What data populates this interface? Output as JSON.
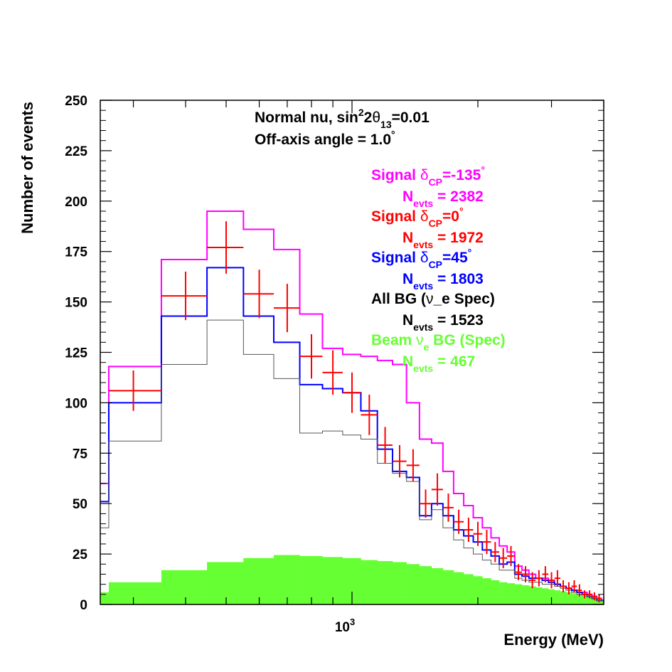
{
  "chart_data": {
    "type": "histogram",
    "title_lines": [
      {
        "text": "Normal nu, sin",
        "sup": "2",
        "text2": "2",
        "greek": "θ",
        "sub": "13",
        "text3": "=0.01"
      },
      {
        "text": "Off-axis angle = 1.0",
        "sup": "°"
      }
    ],
    "xlabel": "Energy (MeV)",
    "ylabel": "Number of events",
    "xscale": "log",
    "xlim": [
      250,
      4000
    ],
    "ylim": [
      0,
      250
    ],
    "yticks": [
      0,
      25,
      50,
      75,
      100,
      125,
      150,
      175,
      200,
      225,
      250
    ],
    "yticklabels": [
      "0",
      "25",
      "50",
      "75",
      "100",
      "125",
      "150",
      "175",
      "200",
      "225",
      "250"
    ],
    "xtick_label": {
      "base": "10",
      "exp": "3",
      "value": 1000
    },
    "bin_edges": [
      250,
      262,
      350,
      450,
      550,
      650,
      750,
      850,
      950,
      1050,
      1150,
      1250,
      1350,
      1450,
      1550,
      1650,
      1750,
      1850,
      1950,
      2050,
      2150,
      2250,
      2350,
      2450,
      2550,
      2650,
      2750,
      2850,
      2950,
      3050,
      3150,
      3250,
      3350,
      3450,
      3550,
      3650,
      3750,
      3850,
      3950,
      4000
    ],
    "series": [
      {
        "name": "Signal δCP=-135°",
        "color": "#ff00ff",
        "style": "step",
        "values": [
          60,
          118,
          171,
          195,
          186,
          176,
          144,
          127,
          124,
          123,
          121,
          119,
          100,
          82,
          80,
          66,
          55,
          49,
          43,
          38,
          33,
          29,
          26,
          19,
          17,
          15,
          13,
          13,
          12,
          10,
          9,
          8,
          7,
          6,
          6,
          5,
          4,
          3,
          2
        ]
      },
      {
        "name": "Signal δCP=45°",
        "color": "#0000ff",
        "style": "step",
        "values": [
          51,
          100,
          143,
          167,
          143,
          130,
          109,
          107,
          105,
          96,
          77,
          66,
          63,
          44,
          50,
          44,
          37,
          34,
          31,
          27,
          24,
          20,
          21,
          15,
          14,
          13,
          13,
          12,
          11,
          10,
          9,
          8,
          7,
          6,
          5,
          4,
          3,
          2,
          2
        ]
      },
      {
        "name": "All BG (ν_e Spec)",
        "color": "#555555",
        "style": "step",
        "values": [
          38,
          81,
          119,
          141,
          124,
          112,
          85,
          86,
          84,
          82,
          70,
          65,
          61,
          42,
          47,
          38,
          32,
          28,
          25,
          22,
          20,
          17,
          17,
          13,
          12,
          11,
          11,
          10,
          10,
          9,
          8,
          7,
          6,
          5,
          5,
          4,
          3,
          2,
          2
        ]
      },
      {
        "name": "Beam νe BG (Spec)",
        "color": "#66ff33",
        "style": "fill",
        "values": [
          6,
          11,
          17,
          21,
          23,
          24.5,
          24,
          23.5,
          23,
          22,
          21.5,
          21,
          20,
          19,
          18,
          17,
          16,
          15,
          14,
          13,
          12,
          11,
          10.5,
          10,
          9.5,
          9,
          8.5,
          8,
          7.5,
          7,
          6.5,
          6,
          5.5,
          5,
          4.5,
          4,
          3.5,
          3,
          2.5
        ]
      }
    ],
    "data_points": {
      "name": "Signal δCP=0°",
      "color": "#ff0000",
      "points": [
        {
          "x": 300,
          "y": 106,
          "err": 10,
          "xlo": 262,
          "xhi": 350
        },
        {
          "x": 400,
          "y": 153,
          "err": 12,
          "xlo": 350,
          "xhi": 450
        },
        {
          "x": 500,
          "y": 177,
          "err": 13,
          "xlo": 450,
          "xhi": 550
        },
        {
          "x": 600,
          "y": 154,
          "err": 12,
          "xlo": 550,
          "xhi": 650
        },
        {
          "x": 700,
          "y": 147,
          "err": 12,
          "xlo": 650,
          "xhi": 750
        },
        {
          "x": 800,
          "y": 123,
          "err": 11,
          "xlo": 750,
          "xhi": 850
        },
        {
          "x": 900,
          "y": 115,
          "err": 11,
          "xlo": 850,
          "xhi": 950
        },
        {
          "x": 1000,
          "y": 105,
          "err": 10,
          "xlo": 950,
          "xhi": 1050
        },
        {
          "x": 1100,
          "y": 94,
          "err": 10,
          "xlo": 1050,
          "xhi": 1150
        },
        {
          "x": 1200,
          "y": 79,
          "err": 9,
          "xlo": 1150,
          "xhi": 1250
        },
        {
          "x": 1300,
          "y": 71,
          "err": 8,
          "xlo": 1250,
          "xhi": 1350
        },
        {
          "x": 1400,
          "y": 69,
          "err": 8,
          "xlo": 1350,
          "xhi": 1450
        },
        {
          "x": 1500,
          "y": 50,
          "err": 7,
          "xlo": 1450,
          "xhi": 1550
        },
        {
          "x": 1600,
          "y": 57,
          "err": 8,
          "xlo": 1550,
          "xhi": 1650
        },
        {
          "x": 1700,
          "y": 48,
          "err": 7,
          "xlo": 1650,
          "xhi": 1750
        },
        {
          "x": 1800,
          "y": 41,
          "err": 6,
          "xlo": 1750,
          "xhi": 1850
        },
        {
          "x": 1900,
          "y": 37,
          "err": 6,
          "xlo": 1850,
          "xhi": 1950
        },
        {
          "x": 2000,
          "y": 35,
          "err": 6,
          "xlo": 1950,
          "xhi": 2050
        },
        {
          "x": 2100,
          "y": 31,
          "err": 6,
          "xlo": 2050,
          "xhi": 2150
        },
        {
          "x": 2200,
          "y": 26,
          "err": 5,
          "xlo": 2150,
          "xhi": 2250
        },
        {
          "x": 2300,
          "y": 23,
          "err": 5,
          "xlo": 2250,
          "xhi": 2350
        },
        {
          "x": 2400,
          "y": 24,
          "err": 5,
          "xlo": 2350,
          "xhi": 2450
        },
        {
          "x": 2500,
          "y": 16,
          "err": 4,
          "xlo": 2450,
          "xhi": 2550
        },
        {
          "x": 2600,
          "y": 15,
          "err": 4,
          "xlo": 2550,
          "xhi": 2650
        },
        {
          "x": 2700,
          "y": 12,
          "err": 4,
          "xlo": 2650,
          "xhi": 2750
        },
        {
          "x": 2800,
          "y": 13,
          "err": 4,
          "xlo": 2750,
          "xhi": 2850
        },
        {
          "x": 2900,
          "y": 15,
          "err": 4,
          "xlo": 2850,
          "xhi": 2950
        },
        {
          "x": 3000,
          "y": 12,
          "err": 4,
          "xlo": 2950,
          "xhi": 3050
        },
        {
          "x": 3100,
          "y": 13,
          "err": 4,
          "xlo": 3050,
          "xhi": 3150
        },
        {
          "x": 3200,
          "y": 9,
          "err": 3,
          "xlo": 3150,
          "xhi": 3250
        },
        {
          "x": 3300,
          "y": 8,
          "err": 3,
          "xlo": 3250,
          "xhi": 3350
        },
        {
          "x": 3400,
          "y": 9,
          "err": 3,
          "xlo": 3350,
          "xhi": 3450
        },
        {
          "x": 3500,
          "y": 7,
          "err": 3,
          "xlo": 3450,
          "xhi": 3550
        },
        {
          "x": 3600,
          "y": 5,
          "err": 2,
          "xlo": 3550,
          "xhi": 3650
        },
        {
          "x": 3700,
          "y": 5,
          "err": 2,
          "xlo": 3650,
          "xhi": 3750
        },
        {
          "x": 3800,
          "y": 4,
          "err": 2,
          "xlo": 3750,
          "xhi": 3850
        },
        {
          "x": 3900,
          "y": 3,
          "err": 2,
          "xlo": 3850,
          "xhi": 3950
        }
      ]
    },
    "legend": [
      {
        "pre": "Signal ",
        "greek": "δ",
        "sub": "CP",
        "post": "=-135",
        "sup": "°",
        "color": "#ff00ff",
        "n_label": "N",
        "n_sub": "evts",
        "n_value": " = 2382"
      },
      {
        "pre": "Signal ",
        "greek": "δ",
        "sub": "CP",
        "post": "=0",
        "sup": "°",
        "color": "#ff0000",
        "n_label": "N",
        "n_sub": "evts",
        "n_value": " = 1972"
      },
      {
        "pre": "Signal ",
        "greek": "δ",
        "sub": "CP",
        "post": "=45",
        "sup": "°",
        "color": "#0000ff",
        "n_label": "N",
        "n_sub": "evts",
        "n_value": " = 1803"
      },
      {
        "pre": "All BG (",
        "greek": "ν",
        "sub": "",
        "post": "_e Spec)",
        "sup": "",
        "color": "#000000",
        "n_label": "N",
        "n_sub": "evts",
        "n_value": " = 1523"
      },
      {
        "pre": "Beam ",
        "greek": "ν",
        "sub": "e",
        "post": " BG (Spec)",
        "sup": "",
        "color": "#66ff33",
        "n_label": "N",
        "n_sub": "evts",
        "n_value": " = 467"
      }
    ],
    "legend_placement": "top-right",
    "grid": false
  }
}
